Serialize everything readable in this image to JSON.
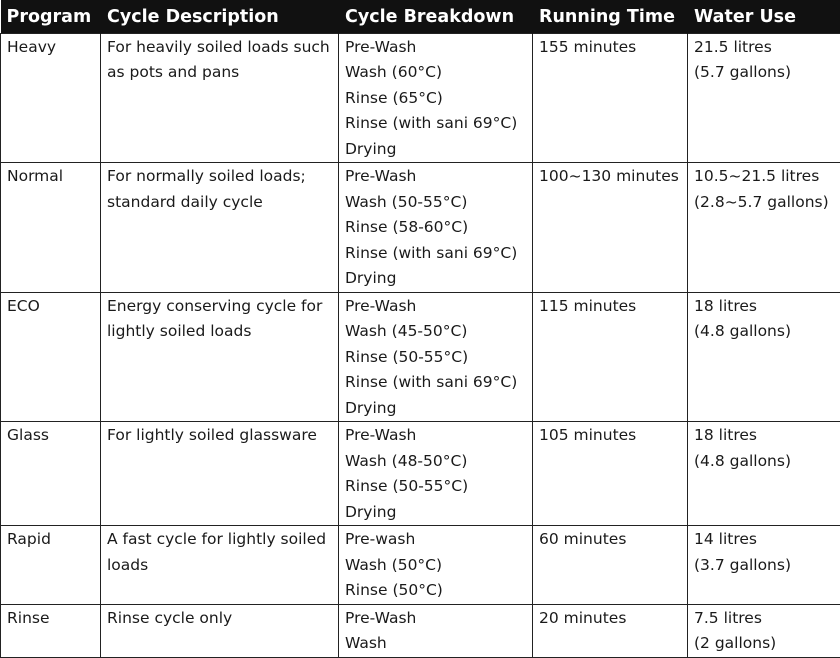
{
  "table": {
    "headers": [
      "Program",
      "Cycle Description",
      "Cycle Breakdown",
      "Running Time",
      "Water Use"
    ],
    "rows": [
      {
        "program": "Heavy",
        "description": "For heavily soiled loads such as pots and pans",
        "breakdown": [
          "Pre-Wash",
          "Wash (60°C)",
          "Rinse (65°C)",
          "Rinse (with sani 69°C)",
          "Drying"
        ],
        "running_time": "155 minutes",
        "water": [
          "21.5 litres",
          "(5.7 gallons)"
        ]
      },
      {
        "program": "Normal",
        "description": "For normally soiled loads; standard daily cycle",
        "breakdown": [
          "Pre-Wash",
          "Wash (50-55°C)",
          "Rinse (58-60°C)",
          "Rinse (with sani 69°C)",
          "Drying"
        ],
        "running_time": "100~130 minutes",
        "water": [
          "10.5~21.5 litres",
          "(2.8~5.7 gallons)"
        ]
      },
      {
        "program": "ECO",
        "description": "Energy conserving cycle for lightly soiled loads",
        "breakdown": [
          "Pre-Wash",
          "Wash (45-50°C)",
          "Rinse (50-55°C)",
          "Rinse (with sani 69°C)",
          "Drying"
        ],
        "running_time": "115 minutes",
        "water": [
          "18 litres",
          "(4.8 gallons)"
        ]
      },
      {
        "program": "Glass",
        "description": "For lightly soiled glassware",
        "breakdown": [
          "Pre-Wash",
          "Wash (48-50°C)",
          "Rinse (50-55°C)",
          "Drying"
        ],
        "running_time": "105 minutes",
        "water": [
          "18 litres",
          "(4.8 gallons)"
        ]
      },
      {
        "program": "Rapid",
        "description": "A fast cycle for lightly soiled loads",
        "breakdown": [
          "Pre-wash",
          "Wash (50°C)",
          "Rinse (50°C)"
        ],
        "running_time": "60 minutes",
        "water": [
          "14 litres",
          "(3.7 gallons)"
        ]
      },
      {
        "program": "Rinse",
        "description": "Rinse cycle only",
        "breakdown": [
          "Pre-Wash",
          "Wash"
        ],
        "running_time": "20 minutes",
        "water": [
          "7.5 litres",
          "(2 gallons)"
        ]
      }
    ]
  },
  "colors": {
    "header_bg": "#111111",
    "header_text": "#ffffff",
    "border": "#222222",
    "text": "#1a1a1a"
  }
}
